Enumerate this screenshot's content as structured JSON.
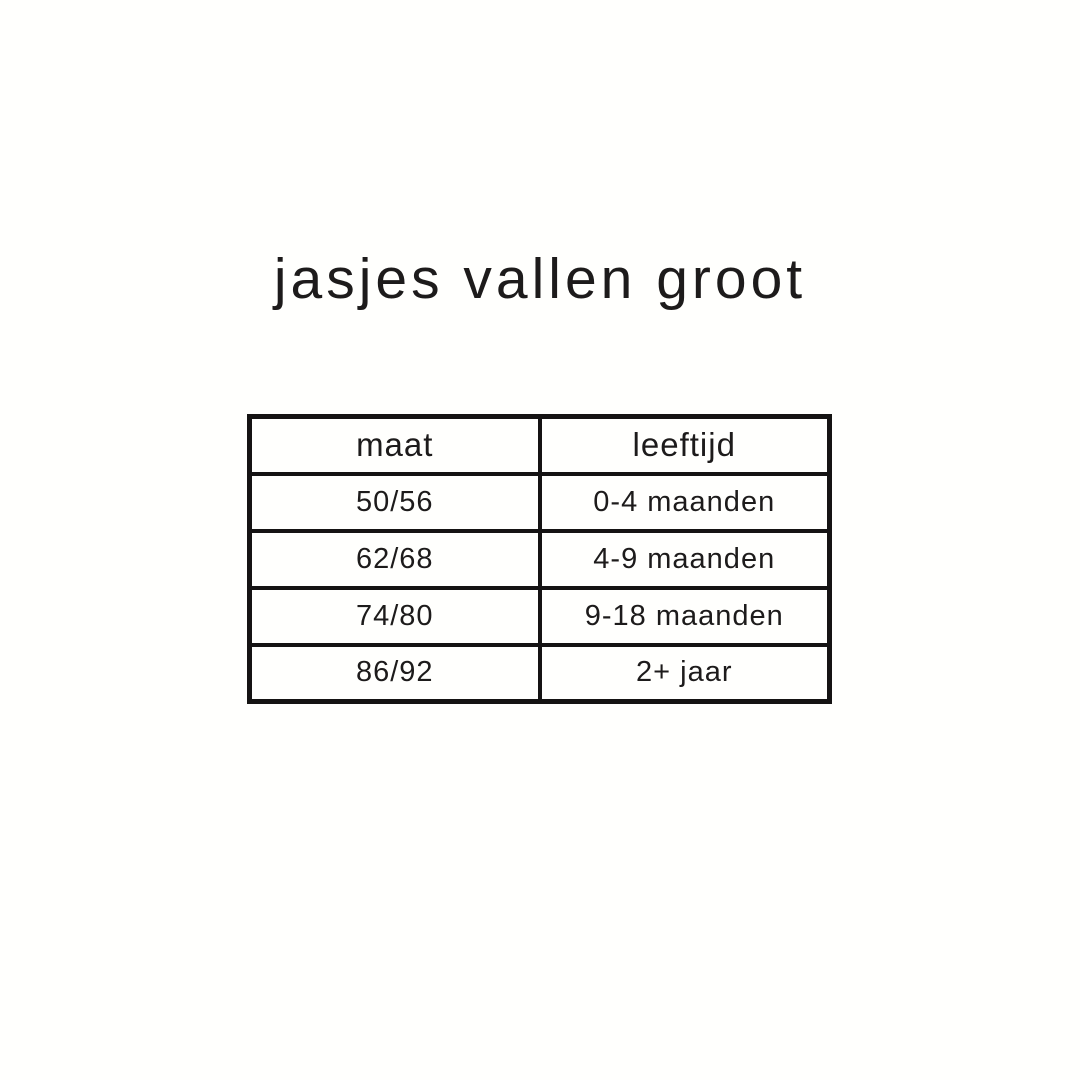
{
  "page": {
    "background_color": "#fffffd",
    "text_color": "#1d1b1b",
    "border_color": "#151313"
  },
  "title": "jasjes vallen groot",
  "table": {
    "headers": [
      "maat",
      "leeftijd"
    ],
    "rows": [
      [
        "50/56",
        "0-4 maanden"
      ],
      [
        "62/68",
        "4-9 maanden"
      ],
      [
        "74/80",
        "9-18 maanden"
      ],
      [
        "86/92",
        "2+ jaar"
      ]
    ]
  },
  "chart_data": {
    "type": "table",
    "title": "jasjes vallen groot",
    "columns": [
      "maat",
      "leeftijd"
    ],
    "rows": [
      {
        "maat": "50/56",
        "leeftijd": "0-4 maanden"
      },
      {
        "maat": "62/68",
        "leeftijd": "4-9 maanden"
      },
      {
        "maat": "74/80",
        "leeftijd": "9-18 maanden"
      },
      {
        "maat": "86/92",
        "leeftijd": "2+ jaar"
      }
    ]
  }
}
